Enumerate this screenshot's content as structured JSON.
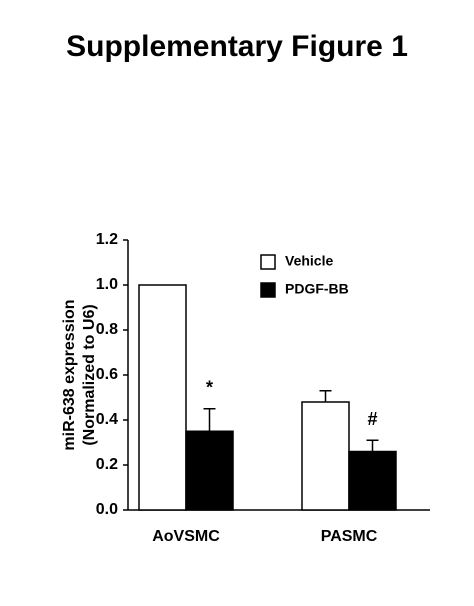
{
  "chart_data": {
    "type": "bar",
    "title": "Supplementary Figure 1",
    "y_label": [
      "miR-638 expression",
      "(Normalized to U6)"
    ],
    "categories": [
      "AoVSMC",
      "PASMC"
    ],
    "series": [
      {
        "name": "Vehicle",
        "color": "#ffffff",
        "values": [
          1.0,
          0.48
        ],
        "errors": [
          null,
          0.05
        ]
      },
      {
        "name": "PDGF-BB",
        "color": "#000000",
        "values": [
          0.35,
          0.26
        ],
        "errors": [
          0.1,
          0.05
        ],
        "annotations": [
          "*",
          "#"
        ]
      }
    ],
    "ylim": [
      0,
      1.2
    ],
    "yticks": [
      {
        "value": 0,
        "label": "0.0"
      },
      0.2,
      0.4,
      0.6,
      0.8,
      {
        "value": 1,
        "label": "1.0"
      },
      1.2
    ],
    "legend": "top-right"
  }
}
